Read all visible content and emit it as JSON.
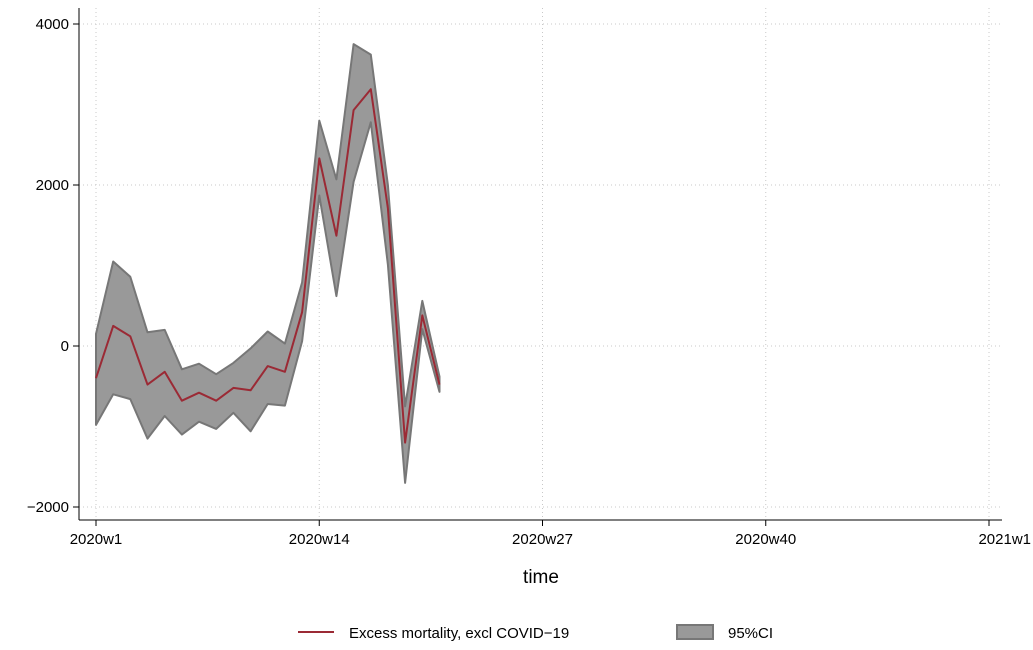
{
  "chart_data": {
    "type": "line",
    "xlabel": "time",
    "ylabel": "",
    "xlim": [
      1,
      53
    ],
    "ylim": [
      -2000,
      4000
    ],
    "x_ticks": [
      1,
      14,
      27,
      40,
      53
    ],
    "x_tick_labels": [
      "2020w1",
      "2020w14",
      "2020w27",
      "2020w40",
      "2021w1"
    ],
    "y_ticks": [
      -2000,
      0,
      2000,
      4000
    ],
    "y_tick_labels": [
      "−2000",
      "0",
      "2000",
      "4000"
    ],
    "grid": true,
    "legend_position": "bottom",
    "colors": {
      "line": "#9b2a35",
      "band": "#999999",
      "band_edge": "#777777"
    },
    "x": [
      1,
      2,
      3,
      4,
      5,
      6,
      7,
      8,
      9,
      10,
      11,
      12,
      13,
      14,
      15,
      16,
      17,
      18,
      19,
      20,
      21
    ],
    "series": [
      {
        "name": "Excess mortality, excl COVID−19",
        "values": [
          -400,
          250,
          120,
          -480,
          -320,
          -680,
          -580,
          -680,
          -520,
          -550,
          -250,
          -320,
          420,
          2330,
          1370,
          2930,
          3190,
          1710,
          -1200,
          380,
          -480
        ]
      }
    ],
    "ci": {
      "name": "95%CI",
      "lower": [
        -980,
        -600,
        -660,
        -1150,
        -870,
        -1100,
        -940,
        -1030,
        -830,
        -1060,
        -720,
        -740,
        60,
        1870,
        620,
        2040,
        2780,
        1010,
        -1700,
        210,
        -570
      ],
      "upper": [
        150,
        1050,
        860,
        170,
        200,
        -290,
        -220,
        -350,
        -210,
        -30,
        180,
        30,
        790,
        2800,
        2070,
        3750,
        3620,
        2000,
        -750,
        560,
        -380
      ]
    }
  }
}
